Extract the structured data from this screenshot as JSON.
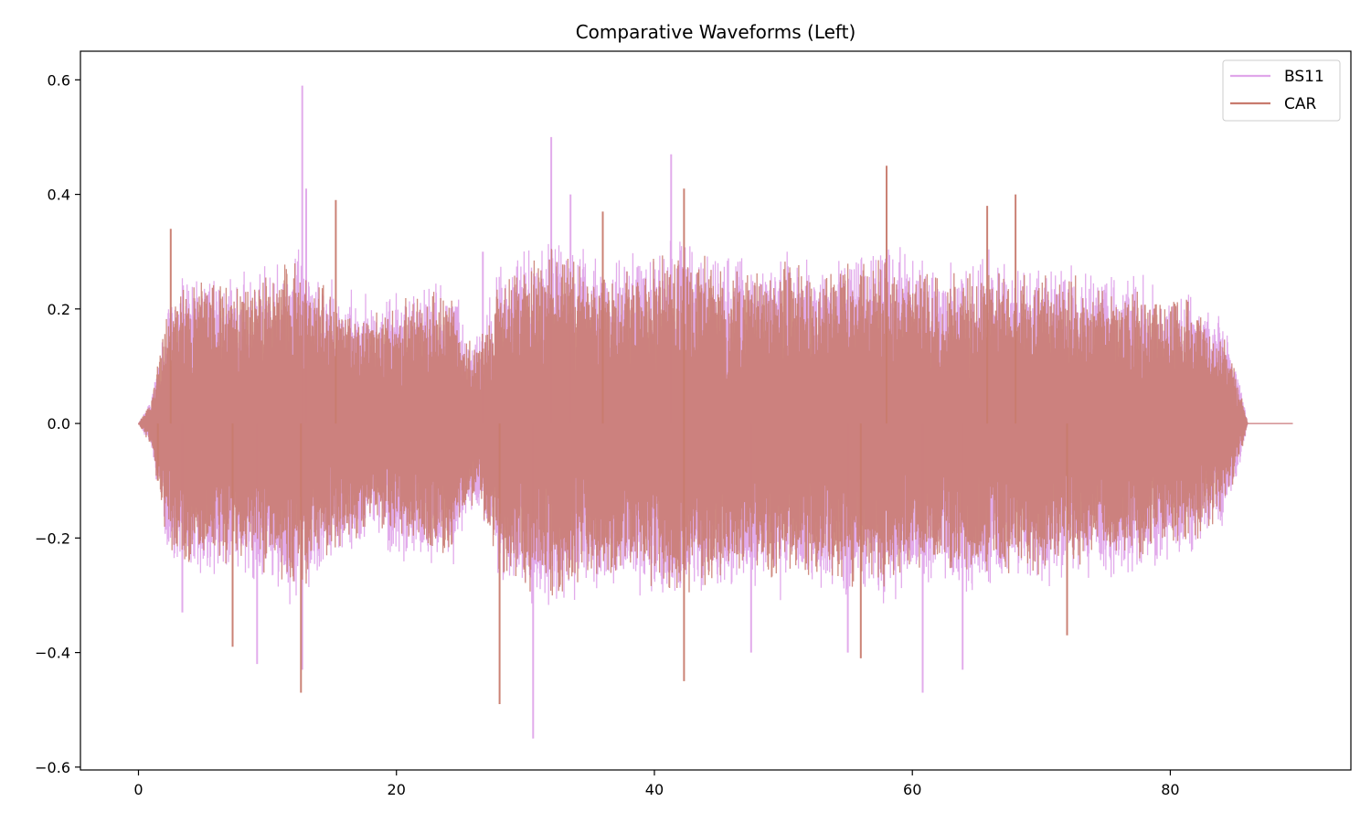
{
  "chart_data": {
    "type": "line",
    "title": "Comparative Waveforms (Left)",
    "xlabel": "",
    "ylabel": "",
    "xlim": [
      -4.5,
      94.0
    ],
    "ylim": [
      -0.605,
      0.65
    ],
    "xticks": [
      0,
      20,
      40,
      60,
      80
    ],
    "xtick_labels": [
      "0",
      "20",
      "40",
      "60",
      "80"
    ],
    "yticks": [
      0.6,
      0.4,
      0.2,
      0.0,
      -0.2,
      -0.4,
      -0.6
    ],
    "ytick_labels": [
      "0.6",
      "0.4",
      "0.2",
      "0.0",
      "−0.2",
      "−0.4",
      "−0.6"
    ],
    "grid": false,
    "legend_position": "top-right",
    "duration": 89.5,
    "signal_end": 86.0,
    "series": [
      {
        "name": "BS11",
        "color": "#e0a6ea",
        "envelope": {
          "x": [
            0,
            1,
            1.8,
            2.5,
            4,
            6,
            8,
            10,
            12,
            13,
            15,
            17,
            19,
            21,
            23,
            24.5,
            25.5,
            26.5,
            28,
            30,
            32,
            35,
            38,
            40,
            42,
            45,
            48,
            50,
            52,
            55,
            58,
            60,
            62,
            64,
            66,
            68,
            70,
            72,
            74,
            76,
            78,
            80,
            82,
            84,
            85.3,
            86.0
          ],
          "y": [
            0.0,
            0.04,
            0.15,
            0.23,
            0.24,
            0.24,
            0.23,
            0.26,
            0.28,
            0.27,
            0.22,
            0.2,
            0.2,
            0.22,
            0.23,
            0.22,
            0.14,
            0.15,
            0.25,
            0.28,
            0.3,
            0.27,
            0.26,
            0.28,
            0.29,
            0.27,
            0.26,
            0.27,
            0.26,
            0.27,
            0.28,
            0.27,
            0.25,
            0.26,
            0.27,
            0.25,
            0.26,
            0.25,
            0.24,
            0.24,
            0.23,
            0.21,
            0.2,
            0.16,
            0.08,
            0.0
          ]
        },
        "peaks": [
          [
            12.7,
            0.59
          ],
          [
            32.0,
            0.5
          ],
          [
            41.3,
            0.47
          ],
          [
            30.6,
            -0.55
          ],
          [
            9.2,
            -0.42
          ],
          [
            60.8,
            -0.47
          ],
          [
            63.9,
            -0.43
          ],
          [
            12.7,
            -0.43
          ],
          [
            13.0,
            0.41
          ],
          [
            33.5,
            0.4
          ],
          [
            3.4,
            -0.33
          ],
          [
            47.5,
            -0.4
          ],
          [
            55.0,
            -0.4
          ],
          [
            26.7,
            0.3
          ]
        ]
      },
      {
        "name": "CAR",
        "color": "#c87b6e",
        "envelope": {
          "x": [
            0,
            1,
            1.8,
            2.5,
            4,
            6,
            8,
            10,
            12,
            13,
            15,
            17,
            19,
            21,
            23,
            24.5,
            25.5,
            26.5,
            28,
            30,
            32,
            35,
            38,
            40,
            42,
            45,
            48,
            50,
            52,
            55,
            58,
            60,
            62,
            64,
            66,
            68,
            70,
            72,
            74,
            76,
            78,
            80,
            82,
            84,
            85.3,
            86.0
          ],
          "y": [
            0.0,
            0.04,
            0.14,
            0.21,
            0.22,
            0.22,
            0.21,
            0.24,
            0.26,
            0.25,
            0.2,
            0.18,
            0.18,
            0.2,
            0.21,
            0.2,
            0.13,
            0.14,
            0.23,
            0.26,
            0.27,
            0.25,
            0.24,
            0.26,
            0.27,
            0.25,
            0.24,
            0.25,
            0.24,
            0.25,
            0.26,
            0.25,
            0.23,
            0.24,
            0.25,
            0.23,
            0.24,
            0.23,
            0.22,
            0.22,
            0.21,
            0.2,
            0.19,
            0.15,
            0.07,
            0.0
          ]
        },
        "peaks": [
          [
            12.6,
            -0.47
          ],
          [
            28.0,
            -0.49
          ],
          [
            42.3,
            -0.45
          ],
          [
            58.0,
            0.45
          ],
          [
            68.0,
            0.4
          ],
          [
            42.3,
            0.41
          ],
          [
            36.0,
            0.37
          ],
          [
            7.3,
            -0.39
          ],
          [
            15.3,
            0.39
          ],
          [
            65.8,
            0.38
          ],
          [
            56.0,
            -0.41
          ],
          [
            72.0,
            -0.37
          ],
          [
            2.5,
            0.34
          ],
          [
            1.5,
            -0.1
          ]
        ]
      }
    ]
  }
}
